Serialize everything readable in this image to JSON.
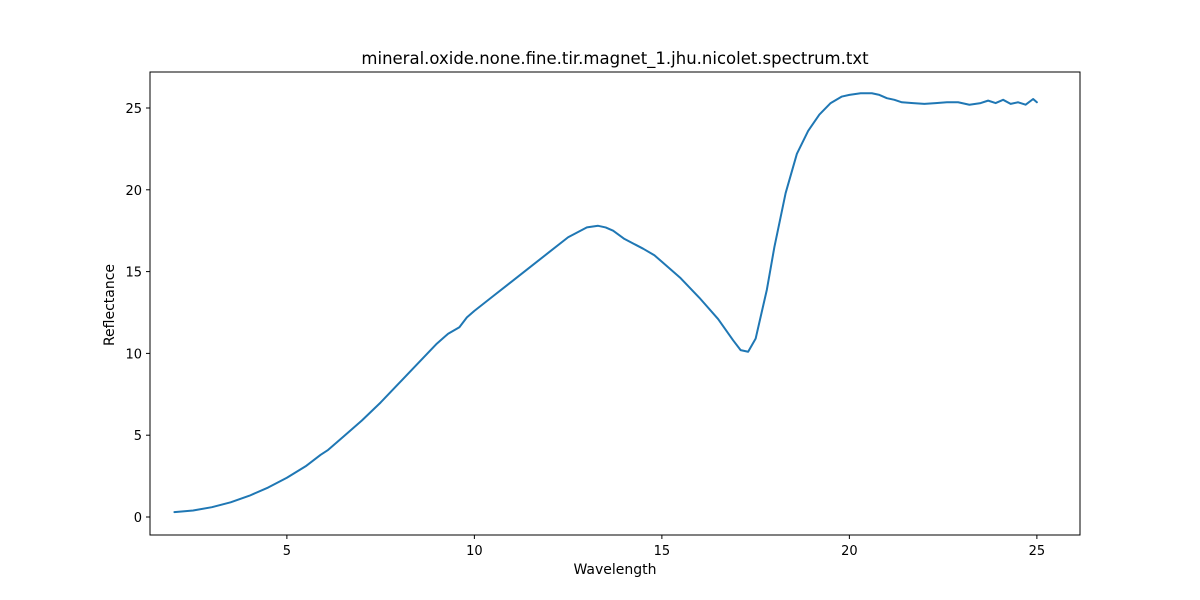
{
  "chart_data": {
    "type": "line",
    "title": "mineral.oxide.none.fine.tir.magnet_1.jhu.nicolet.spectrum.txt",
    "xlabel": "Wavelength",
    "ylabel": "Reflectance",
    "xlim": [
      1.35,
      26.15
    ],
    "ylim": [
      -1.1,
      27.2
    ],
    "xticks": [
      5,
      10,
      15,
      20,
      25
    ],
    "yticks": [
      0,
      5,
      10,
      15,
      20,
      25
    ],
    "grid": false,
    "legend": "none",
    "series_color": "#1f77b4",
    "series": [
      {
        "x": [
          2.0,
          2.5,
          3.0,
          3.5,
          4.0,
          4.5,
          5.0,
          5.5,
          5.9,
          6.1,
          6.5,
          7.0,
          7.5,
          8.0,
          8.5,
          9.0,
          9.2,
          9.3,
          9.6,
          9.8,
          10.0,
          10.5,
          11.0,
          11.5,
          12.0,
          12.5,
          13.0,
          13.3,
          13.5,
          13.7,
          14.0,
          14.5,
          14.8,
          15.0,
          15.5,
          16.0,
          16.5,
          16.9,
          17.1,
          17.3,
          17.5,
          17.8,
          18.0,
          18.3,
          18.6,
          18.9,
          19.2,
          19.5,
          19.8,
          20.0,
          20.3,
          20.6,
          20.8,
          21.0,
          21.2,
          21.4,
          21.7,
          22.0,
          22.3,
          22.6,
          22.9,
          23.2,
          23.5,
          23.7,
          23.9,
          24.1,
          24.3,
          24.5,
          24.7,
          24.9,
          25.0
        ],
        "y": [
          0.3,
          0.4,
          0.6,
          0.9,
          1.3,
          1.8,
          2.4,
          3.1,
          3.8,
          4.1,
          4.9,
          5.9,
          7.0,
          8.2,
          9.4,
          10.6,
          11.0,
          11.2,
          11.6,
          12.2,
          12.6,
          13.5,
          14.4,
          15.3,
          16.2,
          17.1,
          17.7,
          17.8,
          17.7,
          17.5,
          17.0,
          16.4,
          16.0,
          15.6,
          14.6,
          13.4,
          12.1,
          10.8,
          10.2,
          10.1,
          10.9,
          13.9,
          16.5,
          19.8,
          22.2,
          23.6,
          24.6,
          25.3,
          25.7,
          25.8,
          25.9,
          25.9,
          25.8,
          25.6,
          25.5,
          25.35,
          25.3,
          25.25,
          25.3,
          25.35,
          25.35,
          25.2,
          25.3,
          25.45,
          25.3,
          25.5,
          25.25,
          25.35,
          25.2,
          25.55,
          25.35
        ]
      }
    ]
  }
}
